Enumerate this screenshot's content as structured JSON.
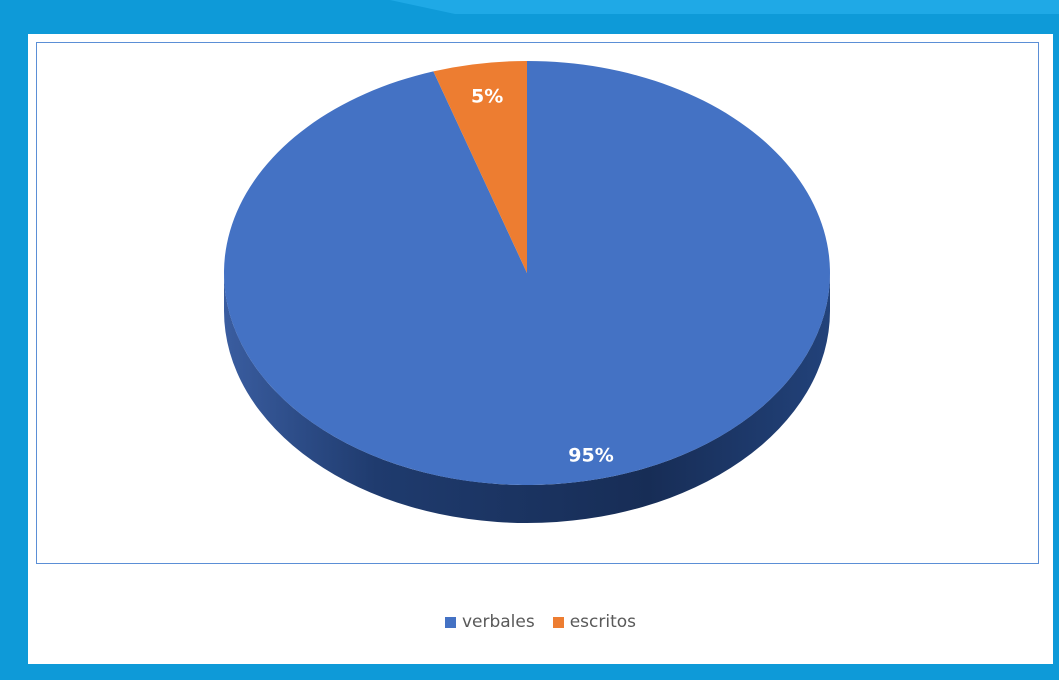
{
  "colors": {
    "frame": "#0E9AD8",
    "accent_wedge": "#1FA9E6"
  },
  "chart_data": {
    "type": "pie",
    "style": "3d",
    "categories": [
      "verbales",
      "escritos"
    ],
    "values": [
      95,
      5
    ],
    "data_labels": [
      "95%",
      "5%"
    ],
    "colors": [
      "#4472C4",
      "#ED7D31"
    ],
    "side_colors": [
      "#1F3B6E",
      "#A8561E"
    ],
    "legend_position": "bottom",
    "title": ""
  }
}
